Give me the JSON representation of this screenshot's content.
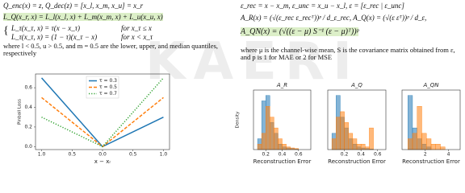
{
  "watermark": "KAERI",
  "left": {
    "equations": [
      "Q_enc(x) = z, Q_dec(z) = [x_l, x_m, x_u] = x_r",
      "L_Q(x_r, x) = L_l(x_l, x) + L_m(x_m, x) + L_u(x_u, x)"
    ],
    "cases": [
      [
        "L_τ(x_τ, x) = τ(x − x_τ)",
        "for x_τ ≤ x"
      ],
      [
        "L_τ(x_τ, x) = (1 − τ)(x_τ − x)",
        "for x < x_τ"
      ]
    ],
    "text": "where l < 0.5, u > 0.5, and m = 0.5 are the lower, upper, and median quantiles, respectively"
  },
  "right": {
    "equations": [
      "ε_rec = x − x_m,  ε_unc = x_u − x_l,  ε = [ε_rec | ε_unc]",
      "A_R(x) = (√(ε_rec ε_recᵀ))ᵖ / d_ε_rec,  A_Q(x) = (√(ε εᵀ))ᵖ / d_ε,",
      "A_QN(x) = (√((ε − μ) S⁻¹ (ε − μ)ᵀ))ᵖ"
    ],
    "text": "where μ is the channel-wise mean, S is the covariance matrix obtained from ε, and p is 1 for MAE or 2 for MSE"
  },
  "chart_data": [
    {
      "type": "line",
      "x_label": "x − xᵣ",
      "y_label": "Pinball Loss",
      "legend": "upper center",
      "x": [
        -1,
        0,
        1
      ],
      "series": [
        {
          "name": "τ = 0.3",
          "color": "#1f77b4",
          "linestyle": "solid",
          "values": [
            0.7,
            0,
            0.3
          ]
        },
        {
          "name": "τ = 0.5",
          "color": "#ff7f0e",
          "linestyle": "dashed",
          "values": [
            0.5,
            0,
            0.5
          ]
        },
        {
          "name": "τ = 0.7",
          "color": "#2ca02c",
          "linestyle": "dotted",
          "values": [
            0.3,
            0,
            0.7
          ]
        }
      ],
      "xlim": [
        -1.1,
        1.1
      ],
      "ylim": [
        -0.03,
        0.74
      ],
      "xticks": [
        {
          "value": -1,
          "label": "1.0"
        },
        {
          "value": -0.5,
          "label": "0.5"
        },
        {
          "value": 0,
          "label": "0.0"
        },
        0.5,
        {
          "value": 1,
          "label": "1.0"
        }
      ],
      "yticks": [
        {
          "value": 0,
          "label": "0.0"
        },
        0.2,
        0.4,
        0.6
      ]
    },
    {
      "type": "histogram",
      "title": "A_R",
      "x_label": "Reconstruction Error",
      "y_label": "Density",
      "bins": [
        0.1,
        0.15,
        0.2,
        0.25,
        0.3,
        0.35,
        0.4,
        0.45,
        0.5,
        0.55,
        0.6
      ],
      "series": [
        {
          "color": "#1f77b4",
          "values": [
            2,
            9,
            10,
            5,
            3,
            1,
            0.5,
            0.3,
            0.2,
            0.1
          ]
        },
        {
          "color": "#ff7f0e",
          "values": [
            1,
            3,
            8,
            6,
            4,
            2,
            1,
            0.5,
            0.3,
            0.2
          ]
        }
      ],
      "xlim": [
        0.05,
        0.75
      ],
      "ylim": [
        0,
        11
      ],
      "xticks": [
        0.2,
        0.4,
        0.6
      ]
    },
    {
      "type": "histogram",
      "title": "A_Q",
      "x_label": "Reconstruction Error",
      "bins": [
        0.05,
        0.1,
        0.15,
        0.2,
        0.25,
        0.3,
        0.35,
        0.4,
        0.45,
        0.5,
        0.55
      ],
      "series": [
        {
          "color": "#1f77b4",
          "values": [
            3,
            10,
            6,
            4,
            2,
            1,
            0.5,
            0.3,
            0.2,
            0.1
          ]
        },
        {
          "color": "#ff7f0e",
          "values": [
            2,
            6,
            7,
            5,
            3,
            2,
            1,
            1,
            0.5,
            4
          ]
        }
      ],
      "xlim": [
        0,
        0.7
      ],
      "ylim": [
        0,
        11
      ],
      "xticks": [
        0.2,
        0.4,
        0.6
      ]
    },
    {
      "type": "histogram",
      "title": "A_QN",
      "x_label": "Reconstruction Error",
      "bins": [
        0.5,
        0.9,
        1.3,
        1.7,
        2.1,
        2.5,
        2.9,
        3.3,
        3.7,
        4.1,
        4.5
      ],
      "series": [
        {
          "color": "#1f77b4",
          "values": [
            1,
            0.4,
            0.2,
            0.1,
            0.05,
            0,
            0,
            0,
            0,
            0
          ]
        },
        {
          "color": "#ff7f0e",
          "values": [
            0.2,
            0.3,
            0.8,
            0.3,
            0.2,
            0.1,
            0.1,
            0.05,
            0,
            0
          ]
        }
      ],
      "xlim": [
        0,
        5
      ],
      "ylim": [
        0,
        1.1
      ],
      "xticks": [
        2,
        4
      ]
    }
  ]
}
